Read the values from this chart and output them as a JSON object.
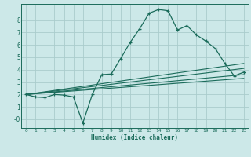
{
  "xlabel": "Humidex (Indice chaleur)",
  "bg_color": "#cce8e8",
  "grid_color": "#aacccc",
  "line_color": "#1a6b5a",
  "xlim": [
    -0.5,
    23.5
  ],
  "ylim": [
    -0.7,
    9.3
  ],
  "xticks": [
    0,
    1,
    2,
    3,
    4,
    5,
    6,
    7,
    8,
    9,
    10,
    11,
    12,
    13,
    14,
    15,
    16,
    17,
    18,
    19,
    20,
    21,
    22,
    23
  ],
  "yticks": [
    0,
    1,
    2,
    3,
    4,
    5,
    6,
    7,
    8
  ],
  "ytick_labels": [
    "-0",
    "1",
    "2",
    "3",
    "4",
    "5",
    "6",
    "7",
    "8"
  ],
  "main_x": [
    0,
    1,
    2,
    3,
    4,
    5,
    6,
    7,
    8,
    9,
    10,
    11,
    12,
    13,
    14,
    15,
    16,
    17,
    18,
    19,
    20,
    21,
    22,
    23
  ],
  "main_y": [
    2.0,
    1.8,
    1.75,
    2.0,
    1.95,
    1.8,
    -0.3,
    2.0,
    3.6,
    3.65,
    4.9,
    6.2,
    7.3,
    8.55,
    8.85,
    8.75,
    7.2,
    7.55,
    6.8,
    6.3,
    5.7,
    4.5,
    3.5,
    3.8
  ],
  "line1_x": [
    0,
    23
  ],
  "line1_y": [
    2.0,
    3.3
  ],
  "line2_x": [
    0,
    23
  ],
  "line2_y": [
    2.0,
    3.6
  ],
  "line3_x": [
    0,
    23
  ],
  "line3_y": [
    2.0,
    4.1
  ],
  "line4_x": [
    0,
    23
  ],
  "line4_y": [
    2.0,
    4.5
  ]
}
